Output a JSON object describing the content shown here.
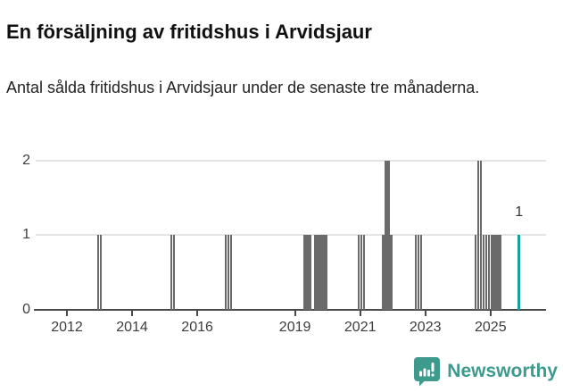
{
  "header": {
    "title": "En försäljning av fritidshus i Arvidsjaur",
    "subtitle": "Antal sålda fritidshus i Arvidsjaur under de senaste tre månaderna."
  },
  "footer": {
    "brand_label": "Newsworthy"
  },
  "chart_data": {
    "type": "bar",
    "title": "En försäljning av fritidshus i Arvidsjaur",
    "subtitle": "Antal sålda fritidshus i Arvidsjaur under de senaste tre månaderna.",
    "grid": "horizontal",
    "legend_position": "none",
    "y_axis": {
      "ticks": [
        0,
        1,
        2
      ],
      "range": [
        0,
        2
      ]
    },
    "x_axis": {
      "tick_years": [
        2012,
        2014,
        2016,
        2019,
        2021,
        2023,
        2025
      ],
      "start": "2011-01",
      "end": "2026-01",
      "unit": "month"
    },
    "points": [
      {
        "month": "2012-12",
        "value": 1
      },
      {
        "month": "2013-01",
        "value": 1
      },
      {
        "month": "2015-03",
        "value": 1
      },
      {
        "month": "2015-04",
        "value": 1
      },
      {
        "month": "2016-11",
        "value": 1
      },
      {
        "month": "2016-12",
        "value": 1
      },
      {
        "month": "2017-01",
        "value": 1
      },
      {
        "month": "2019-04",
        "value": 1
      },
      {
        "month": "2019-05",
        "value": 1
      },
      {
        "month": "2019-06",
        "value": 1
      },
      {
        "month": "2019-08",
        "value": 1
      },
      {
        "month": "2019-09",
        "value": 1
      },
      {
        "month": "2019-10",
        "value": 1
      },
      {
        "month": "2019-11",
        "value": 1
      },
      {
        "month": "2019-12",
        "value": 1
      },
      {
        "month": "2020-12",
        "value": 1
      },
      {
        "month": "2021-01",
        "value": 1
      },
      {
        "month": "2021-02",
        "value": 1
      },
      {
        "month": "2021-09",
        "value": 1
      },
      {
        "month": "2021-10",
        "value": 2
      },
      {
        "month": "2021-11",
        "value": 2
      },
      {
        "month": "2021-12",
        "value": 1
      },
      {
        "month": "2022-09",
        "value": 1
      },
      {
        "month": "2022-10",
        "value": 1
      },
      {
        "month": "2022-11",
        "value": 1
      },
      {
        "month": "2024-07",
        "value": 1
      },
      {
        "month": "2024-08",
        "value": 2
      },
      {
        "month": "2024-09",
        "value": 2
      },
      {
        "month": "2024-10",
        "value": 1
      },
      {
        "month": "2024-11",
        "value": 1
      },
      {
        "month": "2024-12",
        "value": 1
      },
      {
        "month": "2025-01",
        "value": 1
      },
      {
        "month": "2025-02",
        "value": 1
      },
      {
        "month": "2025-03",
        "value": 1
      },
      {
        "month": "2025-04",
        "value": 1
      },
      {
        "month": "2025-11",
        "value": 1,
        "highlight": true
      }
    ],
    "highlight": {
      "month": "2025-11",
      "value": 1,
      "label": "1"
    },
    "colors": {
      "bar": "#6a6a6a",
      "highlight_bar": "#14a29a",
      "gridline": "#e4e4e4",
      "axis": "#4a4a4a",
      "text": "#3d3d3d",
      "brand": "#3f9a8e"
    }
  }
}
